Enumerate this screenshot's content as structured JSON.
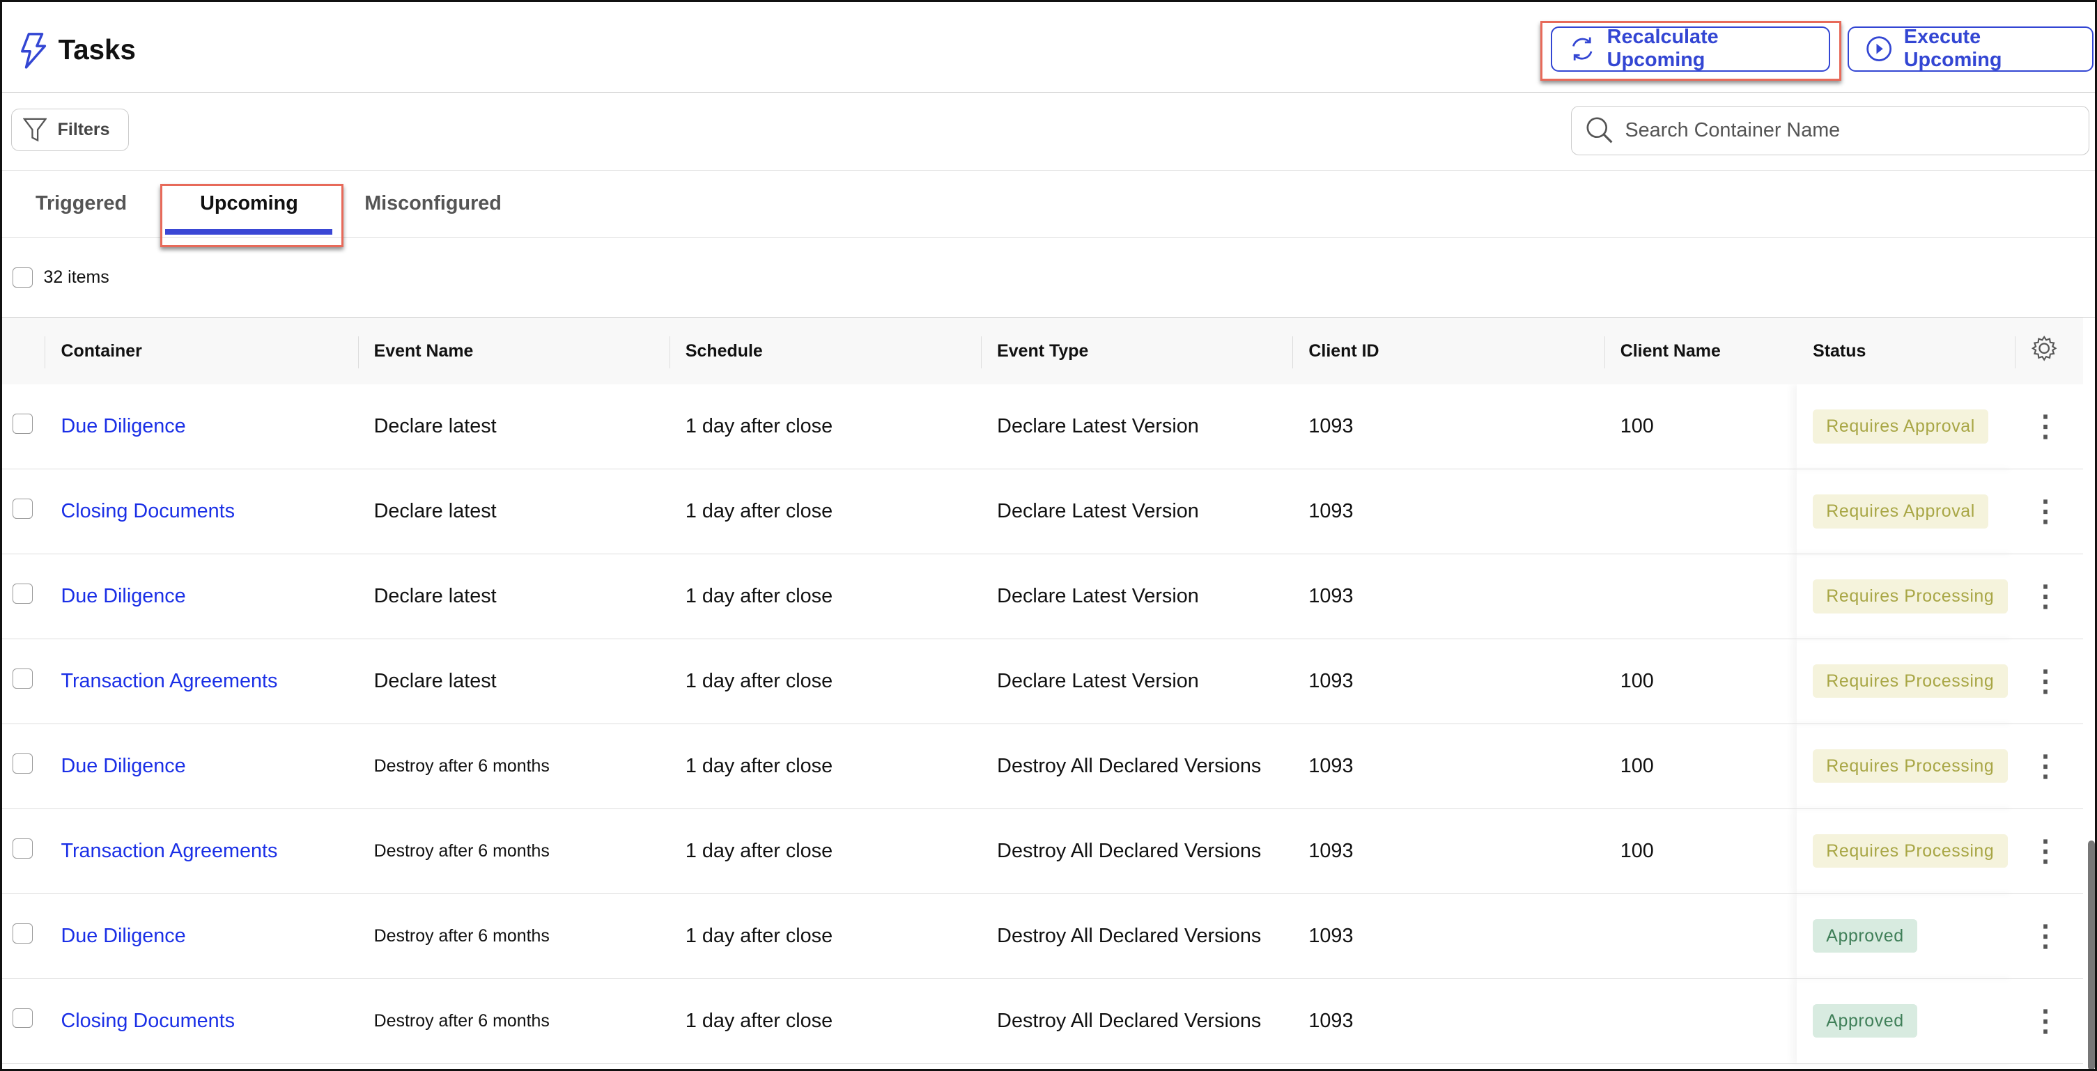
{
  "header": {
    "title": "Tasks",
    "title_icon": "lightning-bolt-icon",
    "recalculate_label": "Recalculate Upcoming",
    "execute_label": "Execute Upcoming"
  },
  "toolbar": {
    "filters_label": "Filters",
    "search_placeholder": "Search Container Name"
  },
  "tabs": [
    {
      "label": "Triggered",
      "active": false
    },
    {
      "label": "Upcoming",
      "active": true
    },
    {
      "label": "Misconfigured",
      "active": false
    }
  ],
  "items_count": "32 items",
  "columns": [
    "Container",
    "Event Name",
    "Schedule",
    "Event Type",
    "Client ID",
    "Client Name",
    "Status"
  ],
  "rows": [
    {
      "container": "Due Diligence",
      "event": "Declare latest",
      "schedule": "1 day after close",
      "type": "Declare Latest Version",
      "client_id": "1093",
      "client_name": "100",
      "status": "Requires Approval"
    },
    {
      "container": "Closing Documents",
      "event": "Declare latest",
      "schedule": "1 day after close",
      "type": "Declare Latest Version",
      "client_id": "1093",
      "client_name": "",
      "status": "Requires Approval"
    },
    {
      "container": "Due Diligence",
      "event": "Declare latest",
      "schedule": "1 day after close",
      "type": "Declare Latest Version",
      "client_id": "1093",
      "client_name": "",
      "status": "Requires Processing"
    },
    {
      "container": "Transaction Agreements",
      "event": "Declare latest",
      "schedule": "1 day after close",
      "type": "Declare Latest Version",
      "client_id": "1093",
      "client_name": "100",
      "status": "Requires Processing"
    },
    {
      "container": "Due Diligence",
      "event": "Destroy after 6 months",
      "schedule": "1 day after close",
      "type": "Destroy All Declared Versions",
      "client_id": "1093",
      "client_name": "100",
      "status": "Requires Processing"
    },
    {
      "container": "Transaction Agreements",
      "event": "Destroy after 6 months",
      "schedule": "1 day after close",
      "type": "Destroy All Declared Versions",
      "client_id": "1093",
      "client_name": "100",
      "status": "Requires Processing"
    },
    {
      "container": "Due Diligence",
      "event": "Destroy after 6 months",
      "schedule": "1 day after close",
      "type": "Destroy All Declared Versions",
      "client_id": "1093",
      "client_name": "",
      "status": "Approved"
    },
    {
      "container": "Closing Documents",
      "event": "Destroy after 6 months",
      "schedule": "1 day after close",
      "type": "Destroy All Declared Versions",
      "client_id": "1093",
      "client_name": "",
      "status": "Approved"
    }
  ],
  "colors": {
    "accent": "#3346d3",
    "link": "#1a2fe6",
    "highlight": "#e76a5a",
    "status_pending_bg": "#f5f3dc",
    "status_pending_fg": "#a8a645",
    "status_approved_bg": "#d8ebe0",
    "status_approved_fg": "#3f7f58"
  }
}
